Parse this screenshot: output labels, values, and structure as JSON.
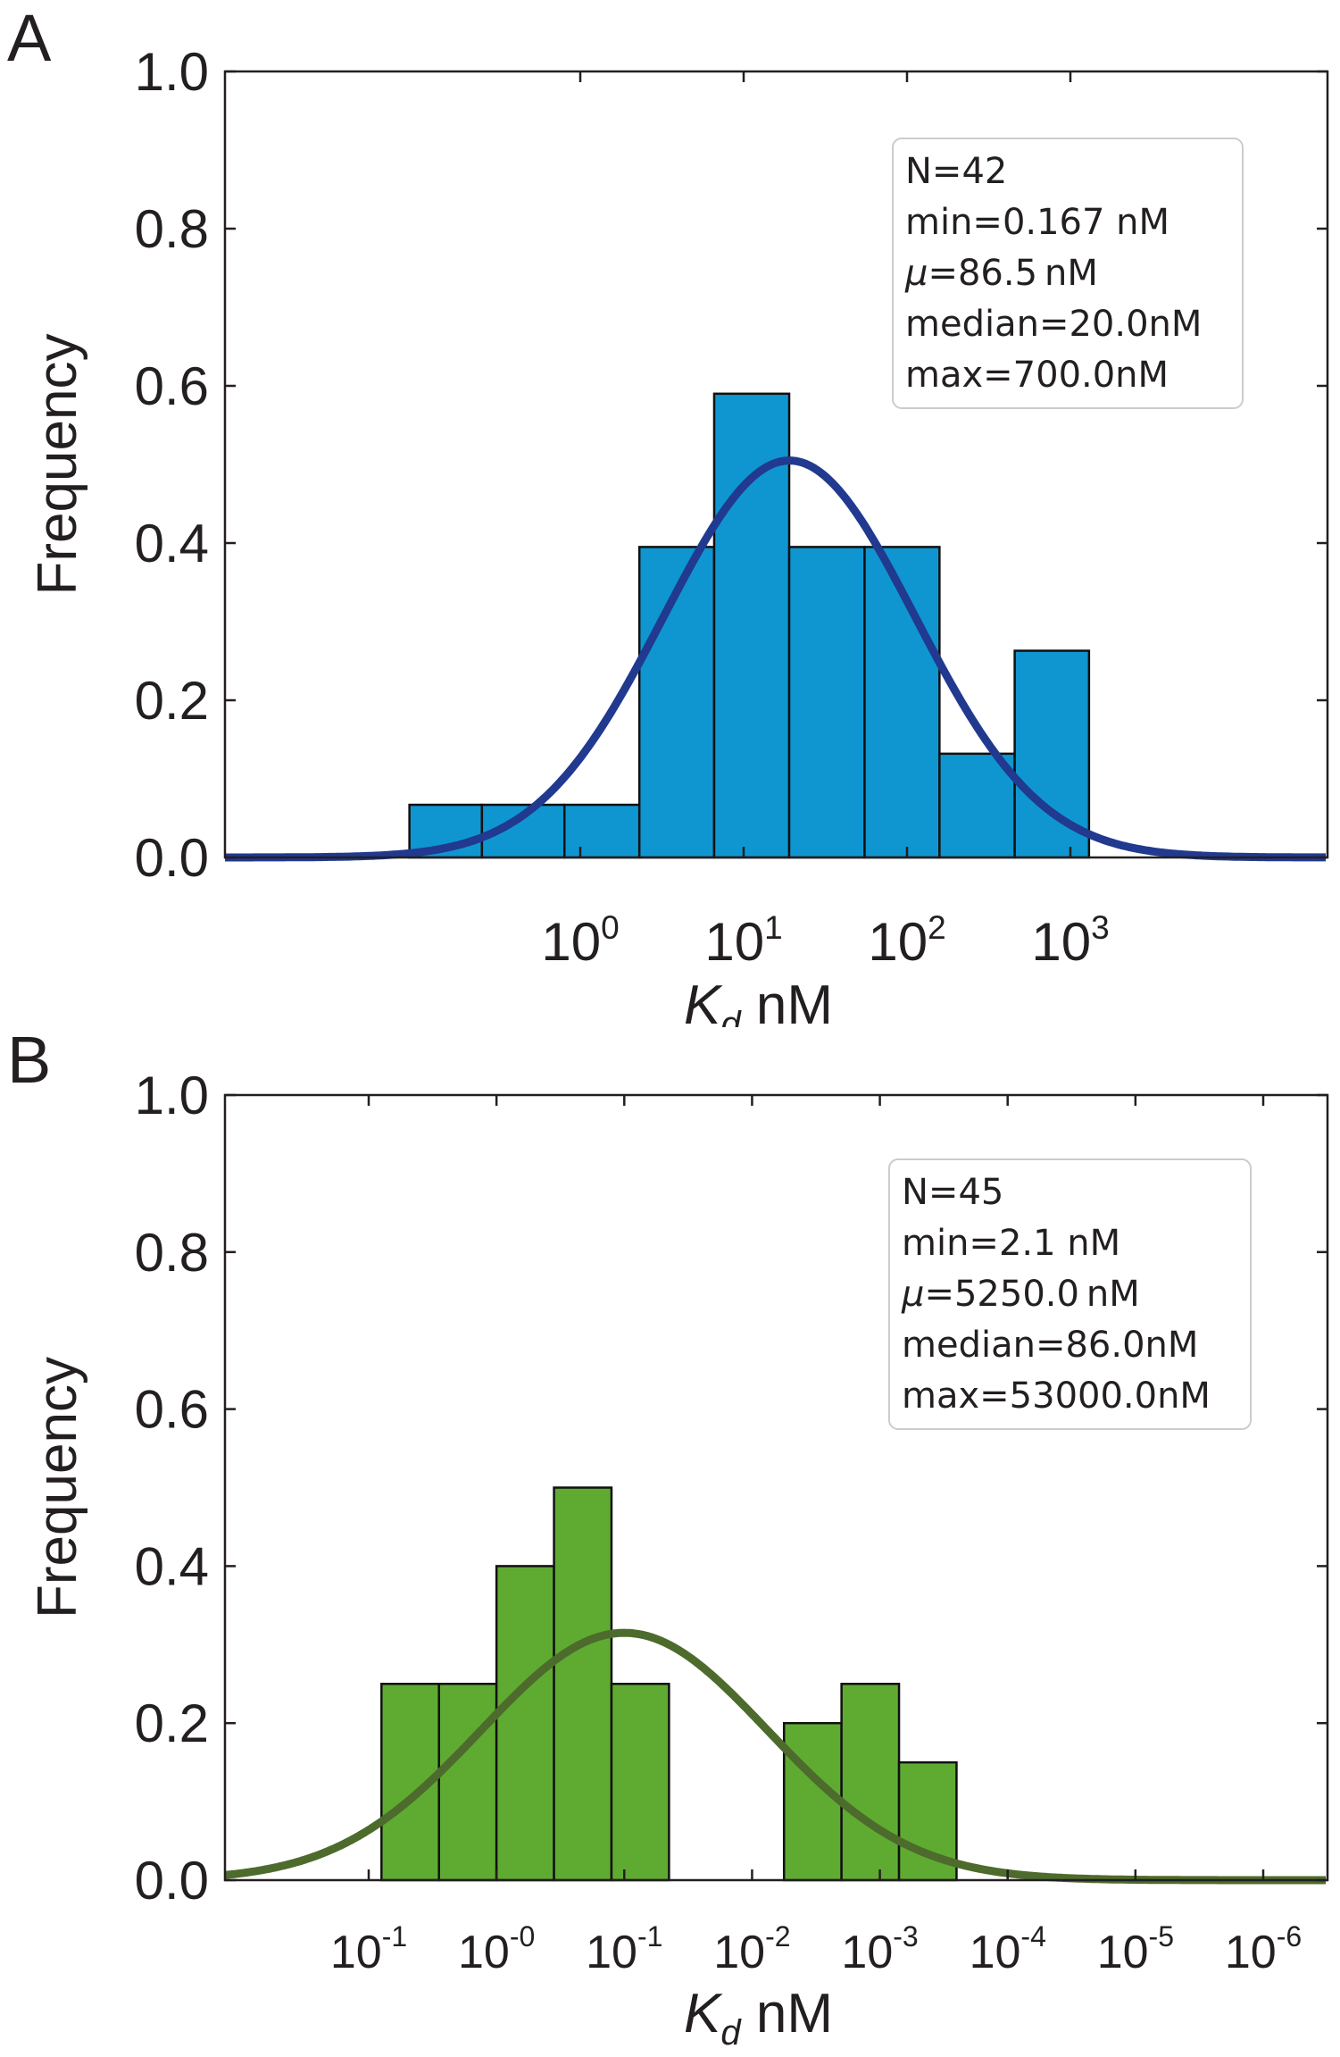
{
  "chart_data": [
    {
      "panel_letter": "A",
      "type": "bar",
      "x_scale": "log",
      "ylabel": "Frequency",
      "xlabel_symbol": "K",
      "xlabel_subscript": "d",
      "xlabel_unit": " nM",
      "ylim": [
        0,
        1.0
      ],
      "yticks": [
        "0.0",
        "0.2",
        "0.4",
        "0.6",
        "0.8",
        "1.0"
      ],
      "xticks": [
        {
          "base": "10",
          "exp": "0"
        },
        {
          "base": "10",
          "exp": "1"
        },
        {
          "base": "10",
          "exp": "2"
        },
        {
          "base": "10",
          "exp": "3"
        }
      ],
      "bar_color": "#0f96d1",
      "curve_color": "#21398f",
      "bars": [
        {
          "x0": 0.09,
          "x1": 0.25,
          "y": 0.067
        },
        {
          "x0": 0.25,
          "x1": 0.8,
          "y": 0.067
        },
        {
          "x0": 0.8,
          "x1": 2.3,
          "y": 0.067
        },
        {
          "x0": 2.3,
          "x1": 6.6,
          "y": 0.395
        },
        {
          "x0": 6.6,
          "x1": 19,
          "y": 0.59
        },
        {
          "x0": 19,
          "x1": 55,
          "y": 0.395
        },
        {
          "x0": 55,
          "x1": 158,
          "y": 0.395
        },
        {
          "x0": 158,
          "x1": 456,
          "y": 0.132
        },
        {
          "x0": 456,
          "x1": 1300,
          "y": 0.263
        }
      ],
      "fit": {
        "peak": 0.505,
        "center_log10": 1.28,
        "sigma_log10": 0.77
      },
      "stats": [
        {
          "key": "N=42"
        },
        {
          "key": "min=0.167 nM"
        },
        {
          "key": "=86.5 nM",
          "prefix": "μ"
        },
        {
          "key": "median=20.0nM"
        },
        {
          "key": "max=700.0nM"
        }
      ]
    },
    {
      "panel_letter": "B",
      "type": "bar",
      "x_scale": "log",
      "ylabel": "Frequency",
      "xlabel_symbol": "K",
      "xlabel_subscript": "d",
      "xlabel_unit": " nM",
      "ylim": [
        0,
        1.0
      ],
      "yticks": [
        "0.0",
        "0.2",
        "0.4",
        "0.6",
        "0.8",
        "1.0"
      ],
      "xticks": [
        {
          "base": "10",
          "exp": "-1"
        },
        {
          "base": "10",
          "exp": "-0"
        },
        {
          "base": "10",
          "exp": "-1"
        },
        {
          "base": "10",
          "exp": "-2"
        },
        {
          "base": "10",
          "exp": "-3"
        },
        {
          "base": "10",
          "exp": "-4"
        },
        {
          "base": "10",
          "exp": "-5"
        },
        {
          "base": "10",
          "exp": "-6"
        }
      ],
      "bar_color": "#5fab32",
      "curve_color": "#4d6b2c",
      "bars": [
        {
          "x0": 0.1,
          "x1": 0.55,
          "y": 0.25
        },
        {
          "x0": 0.55,
          "x1": 1.0,
          "y": 0.25
        },
        {
          "x0": 1.0,
          "x1": 1.45,
          "y": 0.4
        },
        {
          "x0": 1.45,
          "x1": 1.9,
          "y": 0.5
        },
        {
          "x0": 1.9,
          "x1": 2.35,
          "y": 0.25
        },
        {
          "x0": 3.25,
          "x1": 3.7,
          "y": 0.2
        },
        {
          "x0": 3.7,
          "x1": 4.15,
          "y": 0.25
        },
        {
          "x0": 4.15,
          "x1": 4.6,
          "y": 0.15
        }
      ],
      "fit": {
        "peak": 0.315,
        "center_pos": 2.0,
        "sigma_pos": 1.12
      },
      "stats": [
        {
          "key": "N=45"
        },
        {
          "key": "min=2.1 nM"
        },
        {
          "key": "=5250.0 nM",
          "prefix": "μ"
        },
        {
          "key": "median=86.0nM"
        },
        {
          "key": "max=53000.0nM"
        }
      ]
    }
  ]
}
